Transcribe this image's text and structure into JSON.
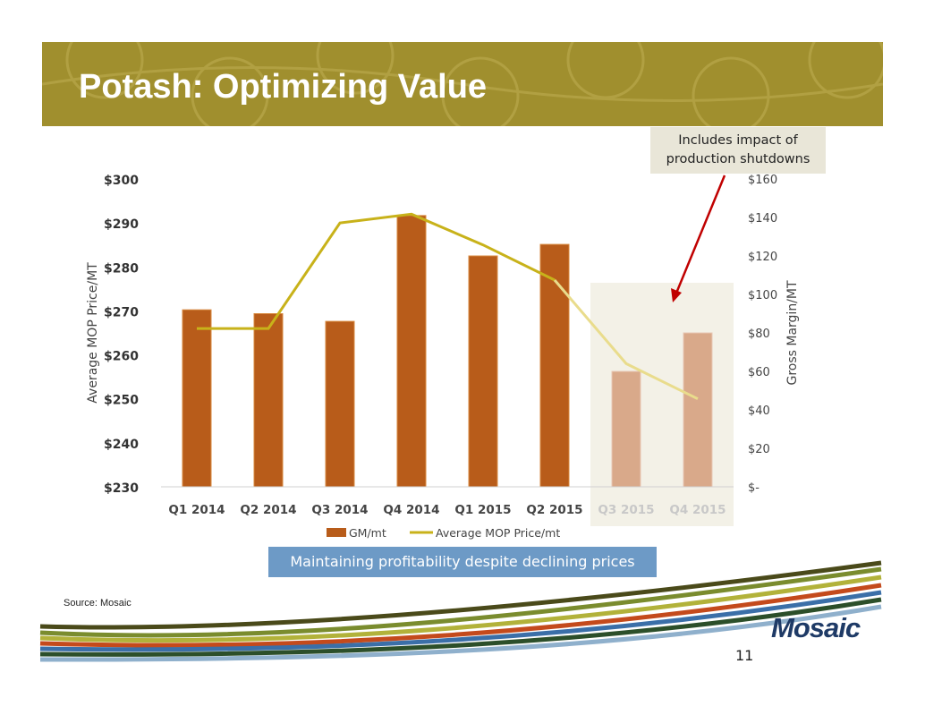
{
  "slide": {
    "title": "Potash: Optimizing Value",
    "callout": "Includes impact of production shutdowns",
    "tagline": "Maintaining profitability despite declining prices",
    "source": "Source: Mosaic",
    "page_number": "11",
    "logo": "Mosaic"
  },
  "colors": {
    "banner": "#a08f2e",
    "bar": "#b85c1a",
    "bar_projected": "#d9a98a",
    "line": "#c8b21a",
    "line_projected": "#e9dc8c",
    "highlight": "#f3f1e7",
    "tagline_bg": "#6d9ac6",
    "arrow": "#c00000"
  },
  "chart_data": {
    "type": "bar",
    "categories": [
      "Q1 2014",
      "Q2 2014",
      "Q3 2014",
      "Q4 2014",
      "Q1 2015",
      "Q2 2015",
      "Q3 2015",
      "Q4 2015"
    ],
    "projected_categories": [
      "Q3 2015",
      "Q4 2015"
    ],
    "series": [
      {
        "name": "GM/mt",
        "type": "bar",
        "axis": "right",
        "values": [
          92,
          90,
          86,
          141,
          120,
          126,
          60,
          80
        ]
      },
      {
        "name": "Average MOP Price/mt",
        "type": "line",
        "axis": "left",
        "values": [
          266,
          266,
          290,
          292,
          285,
          277,
          258,
          250
        ]
      }
    ],
    "ylabel": "Average MOP Price/MT",
    "y2label": "Gross Margin/MT",
    "ylim": [
      230,
      300
    ],
    "y2lim": [
      0,
      160
    ],
    "yticks": [
      "$230",
      "$240",
      "$250",
      "$260",
      "$270",
      "$280",
      "$290",
      "$300"
    ],
    "y2ticks": [
      "$-",
      "$20",
      "$40",
      "$60",
      "$80",
      "$100",
      "$120",
      "$140",
      "$160"
    ],
    "legend": [
      "GM/mt",
      "Average MOP Price/mt"
    ],
    "legend_position": "bottom",
    "grid": false
  }
}
